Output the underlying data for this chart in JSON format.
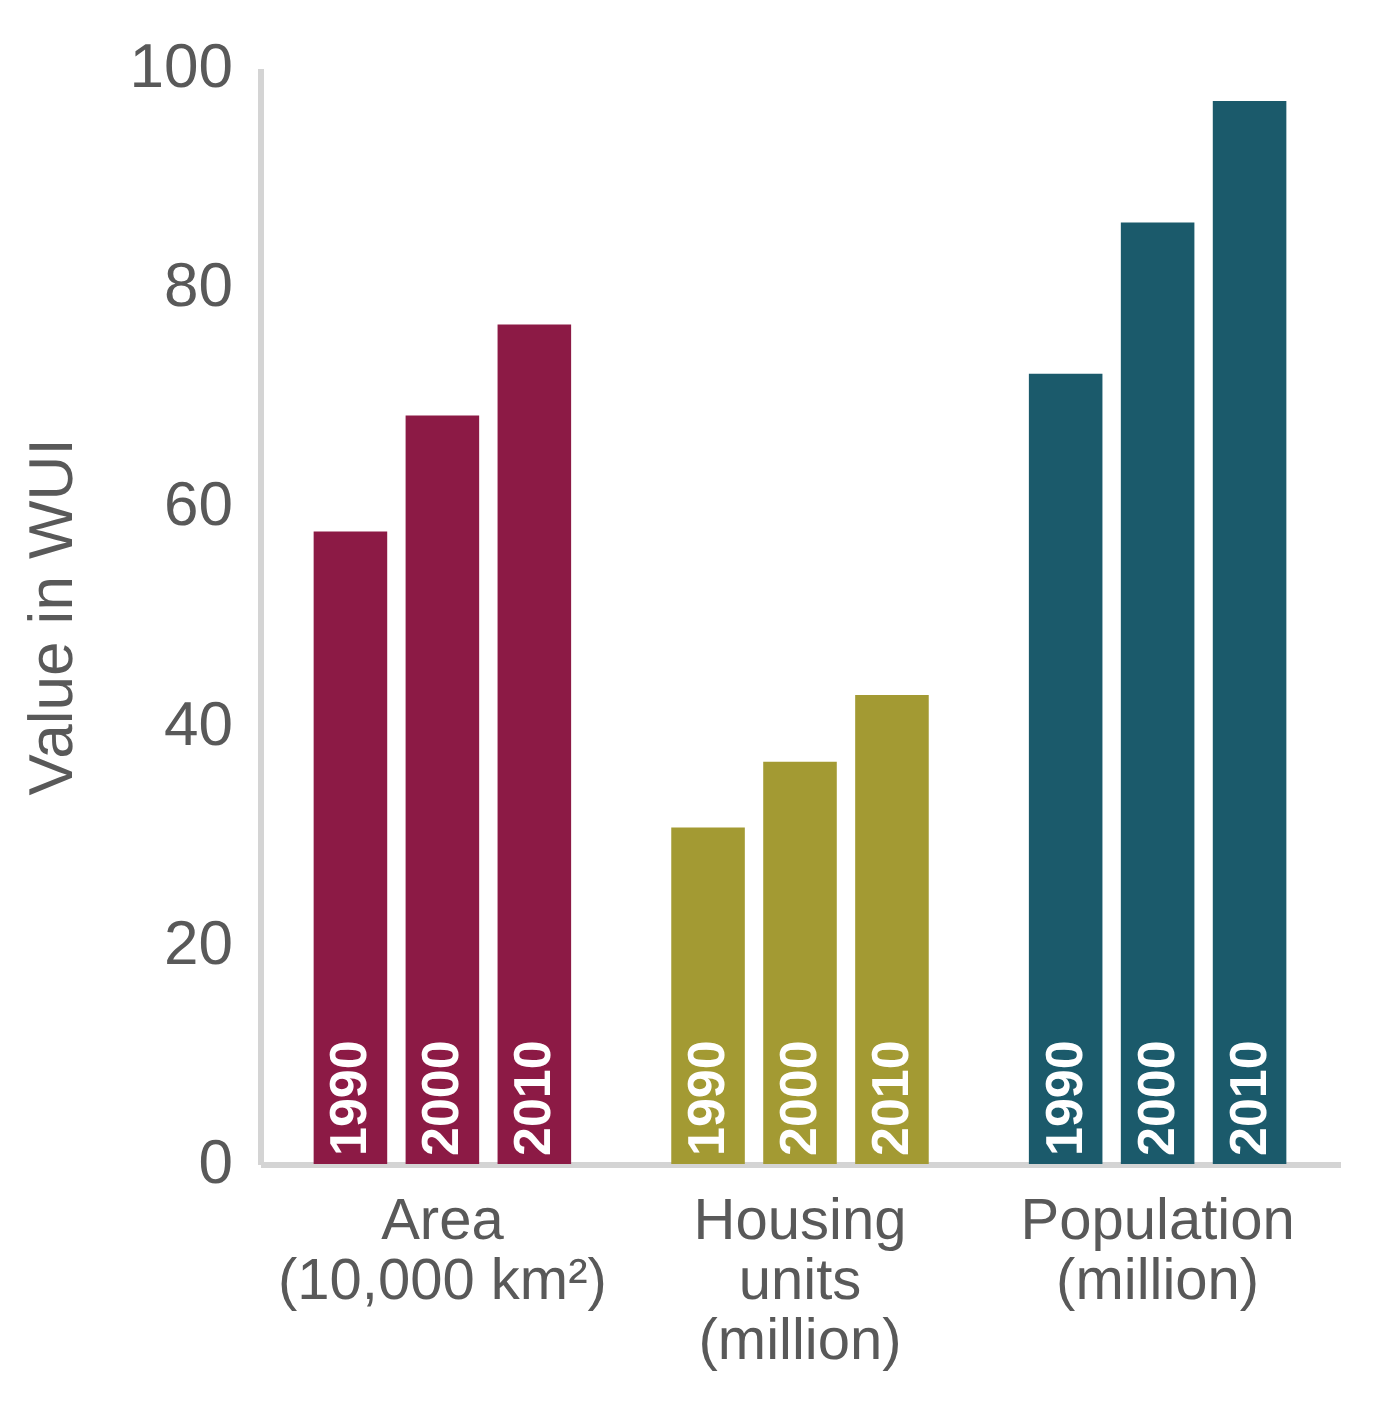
{
  "chart_data": {
    "type": "bar",
    "ylabel": "Value in WUI",
    "categories": [
      "Area\n(10,000 km²)",
      "Housing\nunits\n(million)",
      "Population\n(million)"
    ],
    "series": [
      {
        "name": "1990",
        "colors": [
          "#8c1a45",
          "#a39a33",
          "#1b5a6b"
        ],
        "values": [
          57.7,
          30.7,
          72.1
        ]
      },
      {
        "name": "2000",
        "colors": [
          "#8c1a45",
          "#a39a33",
          "#1b5a6b"
        ],
        "values": [
          68.3,
          36.7,
          85.9
        ]
      },
      {
        "name": "2010",
        "colors": [
          "#8c1a45",
          "#a39a33",
          "#1b5a6b"
        ],
        "values": [
          76.6,
          42.8,
          97
        ]
      }
    ],
    "ylim": [
      0,
      100
    ],
    "yticks": [
      0,
      20,
      40,
      60,
      80,
      100
    ]
  }
}
